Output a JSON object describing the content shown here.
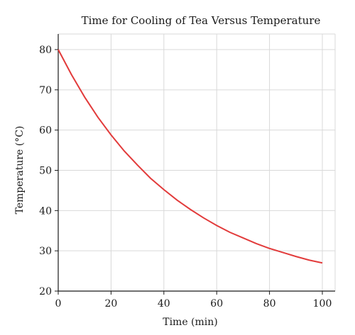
{
  "chart_data": {
    "type": "line",
    "title": "Time for Cooling of Tea Versus Temperature",
    "xlabel": "Time (min)",
    "ylabel": "Temperature (°C)",
    "xlim": [
      0,
      100
    ],
    "ylim": [
      20,
      80
    ],
    "xticks": [
      0,
      20,
      40,
      60,
      80,
      100
    ],
    "yticks": [
      20,
      30,
      40,
      50,
      60,
      70,
      80
    ],
    "grid": true,
    "series": [
      {
        "color": "#e23b3b",
        "x": [
          0,
          5,
          10,
          15,
          20,
          25,
          30,
          35,
          40,
          45,
          50,
          55,
          60,
          65,
          70,
          75,
          80,
          85,
          90,
          95,
          100
        ],
        "y": [
          80,
          73.8,
          68.2,
          63.2,
          58.8,
          54.8,
          51.3,
          48.0,
          45.2,
          42.6,
          40.3,
          38.2,
          36.3,
          34.6,
          33.2,
          31.8,
          30.6,
          29.6,
          28.6,
          27.7,
          27.0
        ]
      }
    ]
  }
}
